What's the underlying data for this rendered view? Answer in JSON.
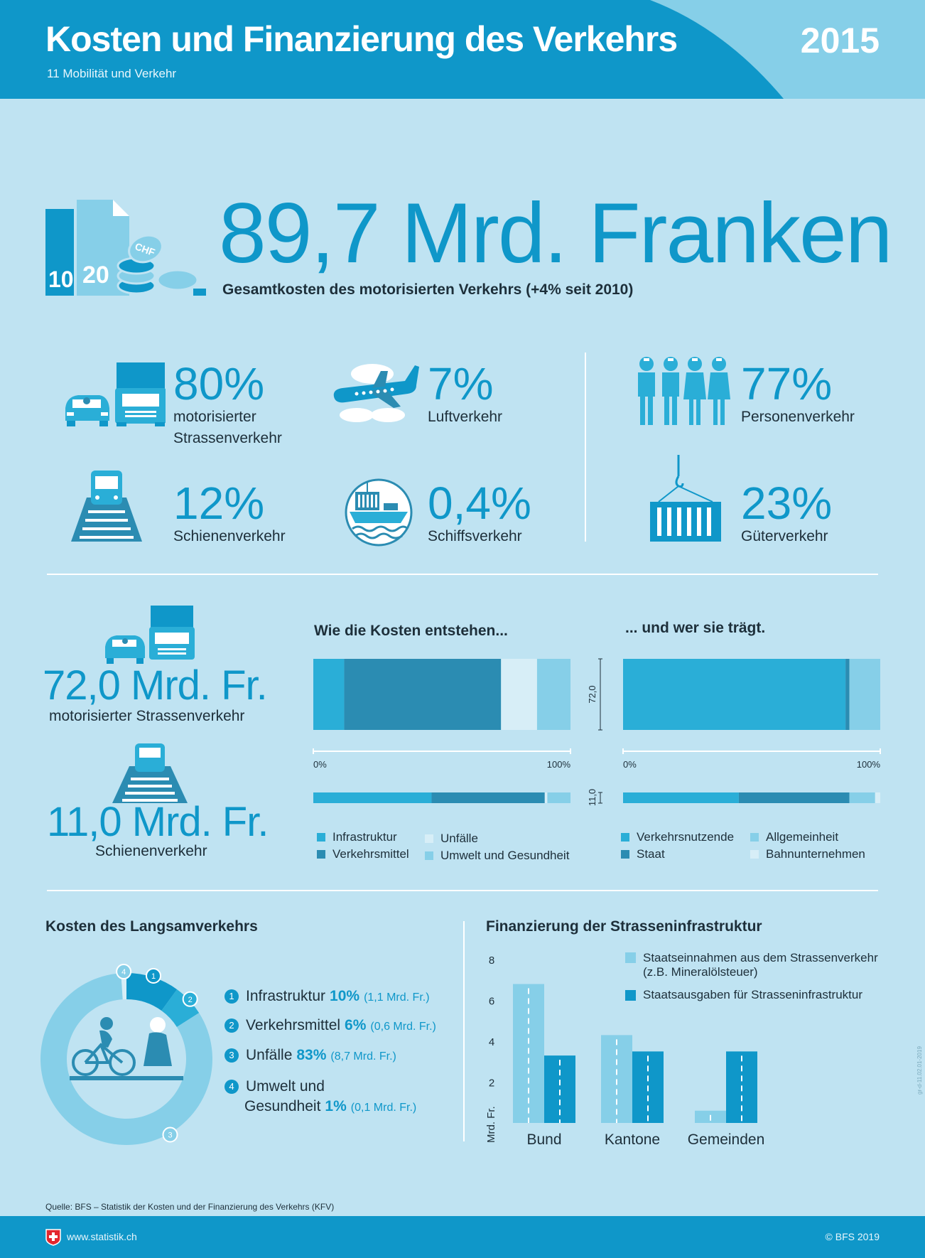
{
  "header": {
    "title": "Kosten und Finanzierung des Verkehrs",
    "subtitle": "11 Mobilität und Verkehr",
    "year": "2015"
  },
  "hero": {
    "value": "89,7 Mrd. Franken",
    "caption": "Gesamtkosten des motorisierten Verkehrs (+4% seit 2010)",
    "icon_labels": [
      "10",
      "20",
      "CHF"
    ]
  },
  "shares": {
    "modes": [
      {
        "pct": "80%",
        "label_1": "motorisierter",
        "label_2": "Strassenverkehr",
        "icon": "car-truck-icon"
      },
      {
        "pct": "7%",
        "label_1": "Luftverkehr",
        "icon": "airplane-icon"
      },
      {
        "pct": "12%",
        "label_1": "Schienenverkehr",
        "icon": "train-icon"
      },
      {
        "pct": "0,4%",
        "label_1": "Schiffsverkehr",
        "icon": "ship-icon"
      }
    ],
    "traffic": [
      {
        "pct": "77%",
        "label": "Personenverkehr",
        "icon": "people-icon"
      },
      {
        "pct": "23%",
        "label": "Güterverkehr",
        "icon": "container-icon"
      }
    ]
  },
  "costs": {
    "road": {
      "value": "72,0 Mrd. Fr.",
      "label": "motorisierter Strassenverkehr"
    },
    "rail": {
      "value": "11,0 Mrd. Fr.",
      "label": "Schienenverkehr"
    }
  },
  "colors": {
    "c1": "#2aaed7",
    "c2": "#2b8cb2",
    "c3": "#d7eef7",
    "c4": "#86cfe8",
    "primary": "#0f97c9"
  },
  "chart_data": [
    {
      "type": "bar",
      "orientation": "horizontal-stacked-100",
      "title": "Wie die Kosten entstehen...",
      "tick_start": "0%",
      "tick_end": "100%",
      "categories": [
        "72,0",
        "11,0"
      ],
      "series": [
        {
          "name": "Infrastruktur",
          "values": [
            12,
            46
          ]
        },
        {
          "name": "Verkehrsmittel",
          "values": [
            61,
            44
          ]
        },
        {
          "name": "Unfälle",
          "values": [
            14,
            1
          ]
        },
        {
          "name": "Umwelt und Gesundheit",
          "values": [
            13,
            9
          ]
        }
      ]
    },
    {
      "type": "bar",
      "orientation": "horizontal-stacked-100",
      "title": "... und wer sie trägt.",
      "tick_start": "0%",
      "tick_end": "100%",
      "categories": [
        "72,0",
        "11,0"
      ],
      "series": [
        {
          "name": "Verkehrsnutzende",
          "values": [
            86.5,
            45
          ]
        },
        {
          "name": "Staat",
          "values": [
            1.5,
            43
          ]
        },
        {
          "name": "Allgemeinheit",
          "values": [
            12,
            10
          ]
        },
        {
          "name": "Bahnunternehmen",
          "values": [
            0,
            2
          ]
        }
      ]
    },
    {
      "type": "pie",
      "title": "Kosten des Langsamverkehrs",
      "items": [
        {
          "num": "1",
          "label": "Infrastruktur",
          "pct": "10%",
          "value": 10,
          "amount": "(1,1 Mrd. Fr.)"
        },
        {
          "num": "2",
          "label": "Verkehrsmittel",
          "pct": "6%",
          "value": 6,
          "amount": "(0,6 Mrd. Fr.)"
        },
        {
          "num": "3",
          "label": "Unfälle",
          "pct": "83%",
          "value": 83,
          "amount": "(8,7 Mrd. Fr.)"
        },
        {
          "num": "4",
          "label_1": "Umwelt und",
          "label_2": "Gesundheit",
          "pct": "1%",
          "value": 1,
          "amount": "(0,1 Mrd. Fr.)"
        }
      ]
    },
    {
      "type": "bar",
      "title": "Finanzierung der Strasseninfrastruktur",
      "ylabel": "Mrd. Fr.",
      "ylim": [
        0,
        8
      ],
      "yticks": [
        "2",
        "4",
        "6",
        "8"
      ],
      "categories": [
        "Bund",
        "Kantone",
        "Gemeinden"
      ],
      "series": [
        {
          "name_1": "Staatseinnahmen aus dem Strassenverkehr",
          "name_2": "(z.B. Mineralölsteuer)",
          "values": [
            6.8,
            4.3,
            0.6
          ]
        },
        {
          "name": "Staatsausgaben für Strasseninfrastruktur",
          "values": [
            3.3,
            3.5,
            3.5
          ]
        }
      ]
    }
  ],
  "footer": {
    "source": "Quelle: BFS – Statistik der Kosten und der Finanzierung des Verkehrs (KFV)",
    "website": "www.statistik.ch",
    "copyright": "© BFS 2019",
    "code": "gr-d-11.02.01-2019"
  }
}
